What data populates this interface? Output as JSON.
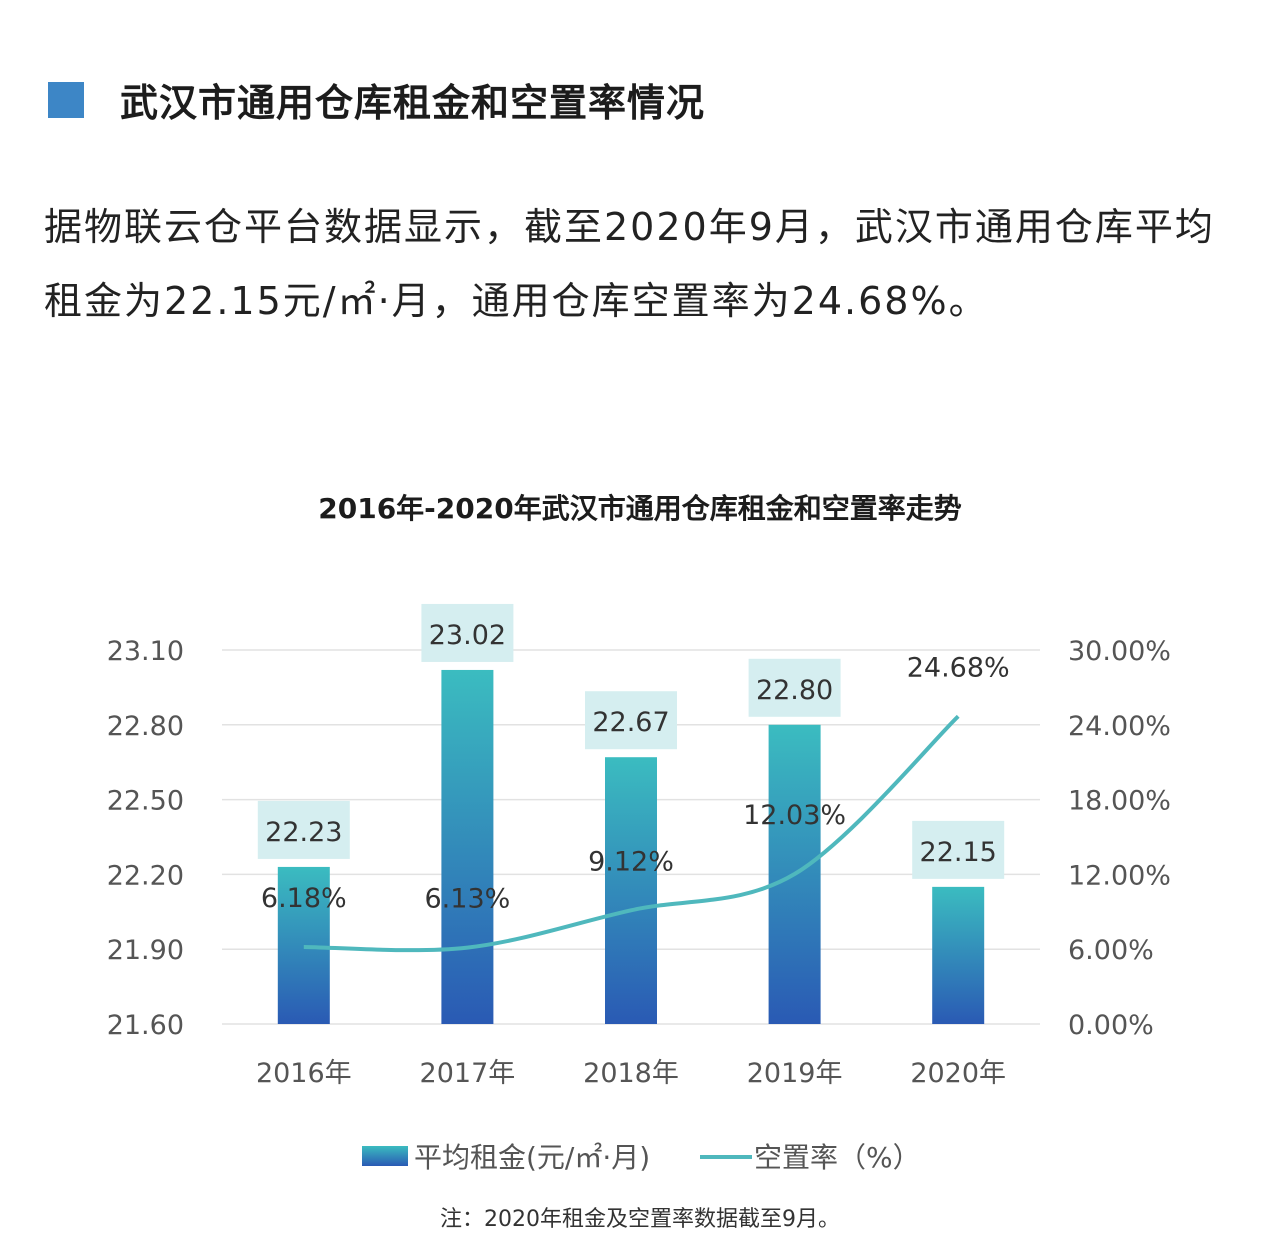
{
  "section": {
    "title": "武汉市通用仓库租金和空置率情况",
    "accent_color": "#3d86c6"
  },
  "intro": "据物联云仓平台数据显示，截至2020年9月，武汉市通用仓库平均租金为22.15元/㎡·月，通用仓库空置率为24.68%。",
  "chart_data": {
    "type": "bar",
    "title": "2016年-2020年武汉市通用仓库租金和空置率走势",
    "categories": [
      "2016年",
      "2017年",
      "2018年",
      "2019年",
      "2020年"
    ],
    "series": [
      {
        "name": "平均租金(元/㎡·月)",
        "type": "bar",
        "axis": "left",
        "values": [
          22.23,
          23.02,
          22.67,
          22.8,
          22.15
        ],
        "labels": [
          "22.23",
          "23.02",
          "22.67",
          "22.80",
          "22.15"
        ],
        "color_top": "#3bbcc0",
        "color_bottom": "#2a5ab4"
      },
      {
        "name": "空置率（%）",
        "type": "line",
        "axis": "right",
        "values": [
          6.18,
          6.13,
          9.12,
          12.03,
          24.68
        ],
        "labels": [
          "6.18%",
          "6.13%",
          "9.12%",
          "12.03%",
          "24.68%"
        ],
        "color": "#4fb8bd"
      }
    ],
    "y_left": {
      "min": 21.6,
      "max": 23.1,
      "ticks": [
        "21.60",
        "21.90",
        "22.20",
        "22.50",
        "22.80",
        "23.10"
      ]
    },
    "y_right": {
      "min": 0,
      "max": 30,
      "ticks": [
        "0.00%",
        "6.00%",
        "12.00%",
        "18.00%",
        "24.00%",
        "30.00%"
      ]
    },
    "grid": true,
    "legend": "bottom",
    "note": "注：2020年租金及空置率数据截至9月。"
  }
}
